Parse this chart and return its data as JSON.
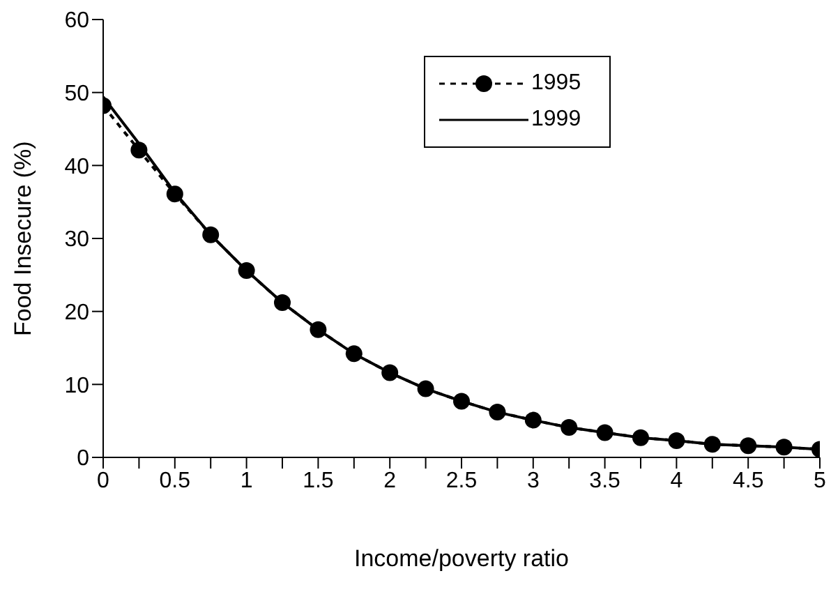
{
  "chart_data": {
    "type": "line",
    "xlabel": "Income/poverty ratio",
    "ylabel": "Food Insecure (%)",
    "x": [
      0,
      0.25,
      0.5,
      0.75,
      1,
      1.25,
      1.5,
      1.75,
      2,
      2.25,
      2.5,
      2.75,
      3,
      3.25,
      3.5,
      3.75,
      4,
      4.25,
      4.5,
      4.75,
      5
    ],
    "series": [
      {
        "name": "1995",
        "color": "#000000",
        "line_style": "dashed",
        "marker": "circle",
        "values": [
          48.2,
          42.1,
          36.1,
          30.5,
          25.6,
          21.2,
          17.5,
          14.2,
          11.6,
          9.4,
          7.7,
          6.2,
          5.1,
          4.1,
          3.4,
          2.7,
          2.3,
          1.8,
          1.6,
          1.4,
          1.1
        ]
      },
      {
        "name": "1999",
        "color": "#000000",
        "line_style": "solid",
        "marker": "none",
        "values": [
          49.4,
          43.0,
          36.3,
          30.5,
          25.6,
          21.2,
          17.5,
          14.2,
          11.6,
          9.4,
          7.7,
          6.2,
          5.1,
          4.1,
          3.4,
          2.7,
          2.3,
          1.8,
          1.6,
          1.4,
          1.1
        ]
      }
    ],
    "xlim": [
      0,
      5
    ],
    "xticks": [
      0,
      {
        "value": 0.25,
        "label": null
      },
      0.5,
      {
        "value": 0.75,
        "label": null
      },
      1,
      {
        "value": 1.25,
        "label": null
      },
      1.5,
      {
        "value": 1.75,
        "label": null
      },
      2,
      {
        "value": 2.25,
        "label": null
      },
      2.5,
      {
        "value": 2.75,
        "label": null
      },
      3,
      {
        "value": 3.25,
        "label": null
      },
      3.5,
      {
        "value": 3.75,
        "label": null
      },
      4,
      {
        "value": 4.25,
        "label": null
      },
      4.5,
      {
        "value": 4.75,
        "label": null
      },
      5
    ],
    "ylim": [
      0,
      60
    ],
    "yticks": [
      0,
      10,
      20,
      30,
      40,
      50,
      60
    ],
    "grid": false,
    "legend": "top right"
  }
}
